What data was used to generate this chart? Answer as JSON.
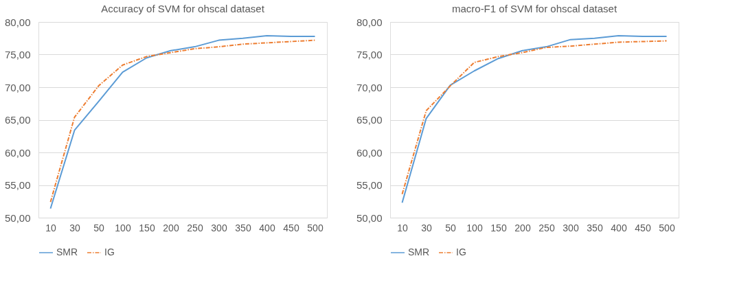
{
  "chart_data": [
    {
      "type": "line",
      "title": "Accuracy of SVM for ohscal dataset",
      "categories": [
        "10",
        "30",
        "50",
        "100",
        "150",
        "200",
        "250",
        "300",
        "350",
        "400",
        "450",
        "500"
      ],
      "ylim": [
        50,
        80
      ],
      "yticks": [
        {
          "value": 50,
          "label": "50,00"
        },
        {
          "value": 55,
          "label": "55,00"
        },
        {
          "value": 60,
          "label": "60,00"
        },
        {
          "value": 65,
          "label": "65,00"
        },
        {
          "value": 70,
          "label": "70,00"
        },
        {
          "value": 75,
          "label": "75,00"
        },
        {
          "value": 80,
          "label": "80,00"
        }
      ],
      "grid": "y",
      "legend": "bottom",
      "series": [
        {
          "name": "SMR",
          "color": "#5b9bd5",
          "line_style": "solid",
          "values": [
            51.4,
            63.4,
            67.8,
            72.3,
            74.5,
            75.6,
            76.2,
            77.2,
            77.5,
            77.9,
            77.8,
            77.8
          ]
        },
        {
          "name": "IG",
          "color": "#ed7d31",
          "line_style": "dashed",
          "values": [
            52.4,
            65.4,
            70.2,
            73.4,
            74.7,
            75.3,
            75.9,
            76.2,
            76.6,
            76.8,
            77.0,
            77.2
          ]
        }
      ]
    },
    {
      "type": "line",
      "title": "macro-F1 of SVM for ohscal dataset",
      "categories": [
        "10",
        "30",
        "50",
        "100",
        "150",
        "200",
        "250",
        "300",
        "350",
        "400",
        "450",
        "500"
      ],
      "ylim": [
        50,
        80
      ],
      "yticks": [
        {
          "value": 50,
          "label": "50,00"
        },
        {
          "value": 55,
          "label": "55,00"
        },
        {
          "value": 60,
          "label": "60,00"
        },
        {
          "value": 65,
          "label": "65,00"
        },
        {
          "value": 70,
          "label": "70,00"
        },
        {
          "value": 75,
          "label": "75,00"
        },
        {
          "value": 80,
          "label": "80,00"
        }
      ],
      "grid": "y",
      "legend": "bottom",
      "series": [
        {
          "name": "SMR",
          "color": "#5b9bd5",
          "line_style": "solid",
          "values": [
            52.3,
            65.2,
            70.3,
            72.5,
            74.4,
            75.6,
            76.2,
            77.3,
            77.5,
            77.9,
            77.8,
            77.8
          ]
        },
        {
          "name": "IG",
          "color": "#ed7d31",
          "line_style": "dashed",
          "values": [
            53.6,
            66.4,
            70.2,
            73.8,
            74.7,
            75.3,
            76.1,
            76.3,
            76.6,
            76.9,
            77.0,
            77.1
          ]
        }
      ]
    }
  ]
}
